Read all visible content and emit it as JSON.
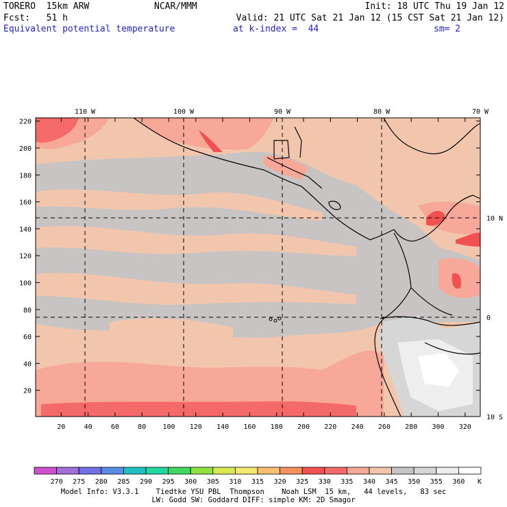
{
  "header": {
    "model": "TORERO  15km ARW",
    "org": "NCAR/MMM",
    "init": "Init: 18 UTC Thu 19 Jan 12",
    "fcst": "Fcst:   51 h",
    "valid": "Valid: 21 UTC Sat 21 Jan 12 (15 CST Sat 21 Jan 12)",
    "field": "Equivalent potential temperature",
    "level": "at k-index =  44",
    "smooth": "sm= 2"
  },
  "axes": {
    "x_ticks": [
      "20",
      "40",
      "60",
      "80",
      "100",
      "120",
      "140",
      "160",
      "180",
      "200",
      "220",
      "240",
      "260",
      "280",
      "300",
      "320"
    ],
    "y_ticks": [
      "20",
      "40",
      "60",
      "80",
      "100",
      "120",
      "140",
      "160",
      "180",
      "200",
      "220"
    ],
    "lon_labels": [
      "110 W",
      "100 W",
      "90 W",
      "80 W",
      "70 W"
    ],
    "lat_labels": [
      "10 N",
      "0",
      "10 S"
    ]
  },
  "colorbar": {
    "labels": [
      "270",
      "275",
      "280",
      "285",
      "290",
      "295",
      "300",
      "305",
      "310",
      "315",
      "320",
      "325",
      "330",
      "335",
      "340",
      "345",
      "350",
      "355",
      "360"
    ],
    "unit": "K",
    "colors": [
      "#d050d0",
      "#a070d8",
      "#7070e8",
      "#5a8ce6",
      "#20c0c0",
      "#20d8a0",
      "#40d860",
      "#90e040",
      "#d8ea50",
      "#f6e870",
      "#f8c070",
      "#f89060",
      "#f05050",
      "#f46a6a",
      "#f8a898",
      "#f2c6ac",
      "#c8c4c4",
      "#d6d6d6",
      "#eeeeee",
      "#ffffff"
    ]
  },
  "model_info": {
    "line1": "Model Info: V3.3.1    Tiedtke YSU PBL  Thompson    Noah LSM  15 km,   44 levels,   83 sec",
    "line2": "LW: Godd SW: Goddard DIFF: simple KM: 2D Smagor"
  }
}
